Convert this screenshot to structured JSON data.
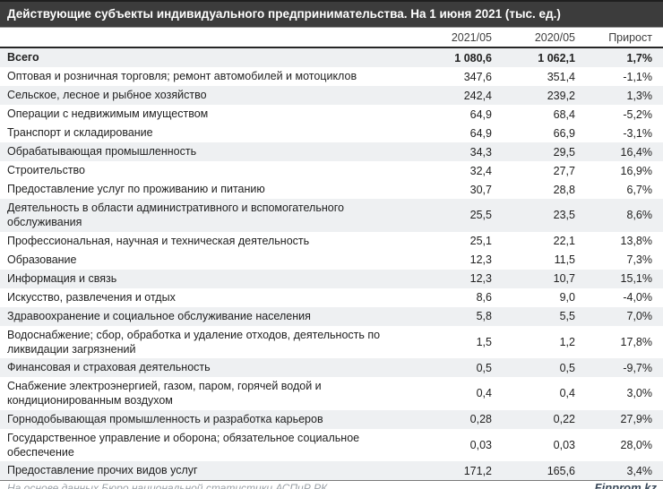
{
  "title": "Действующие субъекты индивидуального предпринимательства. На 1 июня 2021 (тыс. ед.)",
  "table": {
    "columns": [
      "2021/05",
      "2020/05",
      "Прирост"
    ],
    "rows": [
      {
        "label": "Всего",
        "v2021_05": "1 080,6",
        "v2020_05": "1 062,1",
        "growth": "1,7%",
        "bold": true,
        "shaded": true
      },
      {
        "label": "Оптовая и розничная торговля; ремонт автомобилей и мотоциклов",
        "v2021_05": "347,6",
        "v2020_05": "351,4",
        "growth": "-1,1%",
        "bold": false,
        "shaded": false
      },
      {
        "label": "Сельское, лесное и рыбное хозяйство",
        "v2021_05": "242,4",
        "v2020_05": "239,2",
        "growth": "1,3%",
        "bold": false,
        "shaded": true
      },
      {
        "label": "Операции с недвижимым имуществом",
        "v2021_05": "64,9",
        "v2020_05": "68,4",
        "growth": "-5,2%",
        "bold": false,
        "shaded": false
      },
      {
        "label": "Транспорт и складирование",
        "v2021_05": "64,9",
        "v2020_05": "66,9",
        "growth": "-3,1%",
        "bold": false,
        "shaded": false
      },
      {
        "label": "Обрабатывающая промышленность",
        "v2021_05": "34,3",
        "v2020_05": "29,5",
        "growth": "16,4%",
        "bold": false,
        "shaded": true
      },
      {
        "label": "Строительство",
        "v2021_05": "32,4",
        "v2020_05": "27,7",
        "growth": "16,9%",
        "bold": false,
        "shaded": false
      },
      {
        "label": "Предоставление услуг по проживанию и питанию",
        "v2021_05": "30,7",
        "v2020_05": "28,8",
        "growth": "6,7%",
        "bold": false,
        "shaded": false
      },
      {
        "label": "Деятельность в области административного и вспомогательного обслуживания",
        "v2021_05": "25,5",
        "v2020_05": "23,5",
        "growth": "8,6%",
        "bold": false,
        "shaded": true
      },
      {
        "label": "Профессиональная, научная и техническая деятельность",
        "v2021_05": "25,1",
        "v2020_05": "22,1",
        "growth": "13,8%",
        "bold": false,
        "shaded": false
      },
      {
        "label": "Образование",
        "v2021_05": "12,3",
        "v2020_05": "11,5",
        "growth": "7,3%",
        "bold": false,
        "shaded": false
      },
      {
        "label": "Информация и связь",
        "v2021_05": "12,3",
        "v2020_05": "10,7",
        "growth": "15,1%",
        "bold": false,
        "shaded": true
      },
      {
        "label": "Искусство, развлечения и отдых",
        "v2021_05": "8,6",
        "v2020_05": "9,0",
        "growth": "-4,0%",
        "bold": false,
        "shaded": false
      },
      {
        "label": "Здравоохранение и социальное обслуживание населения",
        "v2021_05": "5,8",
        "v2020_05": "5,5",
        "growth": "7,0%",
        "bold": false,
        "shaded": true
      },
      {
        "label": "Водоснабжение; сбор, обработка и удаление отходов, деятельность по ликвидации загрязнений",
        "v2021_05": "1,5",
        "v2020_05": "1,2",
        "growth": "17,8%",
        "bold": false,
        "shaded": false
      },
      {
        "label": "Финансовая и страховая деятельность",
        "v2021_05": "0,5",
        "v2020_05": "0,5",
        "growth": "-9,7%",
        "bold": false,
        "shaded": true
      },
      {
        "label": "Снабжение электроэнергией, газом, паром, горячей водой и кондиционированным воздухом",
        "v2021_05": "0,4",
        "v2020_05": "0,4",
        "growth": "3,0%",
        "bold": false,
        "shaded": false
      },
      {
        "label": "Горнодобывающая промышленность и разработка карьеров",
        "v2021_05": "0,28",
        "v2020_05": "0,22",
        "growth": "27,9%",
        "bold": false,
        "shaded": true
      },
      {
        "label": "Государственное управление и оборона; обязательное социальное обеспечение",
        "v2021_05": "0,03",
        "v2020_05": "0,03",
        "growth": "28,0%",
        "bold": false,
        "shaded": false
      },
      {
        "label": "Предоставление прочих видов услуг",
        "v2021_05": "171,2",
        "v2020_05": "165,6",
        "growth": "3,4%",
        "bold": false,
        "shaded": true
      }
    ]
  },
  "footer": {
    "source": "На основе данных Бюро национальной статистики АСПиР РК",
    "brand": "Finprom.kz"
  },
  "colors": {
    "title_bar_bg": "#3c3c3c",
    "title_text": "#ffffff",
    "row_shade": "#eef0f2",
    "body_text": "#1f1f1f",
    "source_text": "#9aa0a6",
    "brand_text": "#3b4a5a",
    "rule_dark": "#262626"
  },
  "chart_data": {
    "type": "table",
    "title": "Действующие субъекты индивидуального предпринимательства. На 1 июня 2021 (тыс. ед.)",
    "columns": [
      "2021/05",
      "2020/05",
      "Прирост"
    ],
    "categories": [
      "Всего",
      "Оптовая и розничная торговля; ремонт автомобилей и мотоциклов",
      "Сельское, лесное и рыбное хозяйство",
      "Операции с недвижимым имуществом",
      "Транспорт и складирование",
      "Обрабатывающая промышленность",
      "Строительство",
      "Предоставление услуг по проживанию и питанию",
      "Деятельность в области административного и вспомогательного обслуживания",
      "Профессиональная, научная и техническая деятельность",
      "Образование",
      "Информация и связь",
      "Искусство, развлечения и отдых",
      "Здравоохранение и социальное обслуживание населения",
      "Водоснабжение; сбор, обработка и удаление отходов, деятельность по ликвидации загрязнений",
      "Финансовая и страховая деятельность",
      "Снабжение электроэнергией, газом, паром, горячей водой и кондиционированным воздухом",
      "Горнодобывающая промышленность и разработка карьеров",
      "Государственное управление и оборона; обязательное социальное обеспечение",
      "Предоставление прочих видов услуг"
    ],
    "series": [
      {
        "name": "2021/05",
        "values": [
          1080.6,
          347.6,
          242.4,
          64.9,
          64.9,
          34.3,
          32.4,
          30.7,
          25.5,
          25.1,
          12.3,
          12.3,
          8.6,
          5.8,
          1.5,
          0.5,
          0.4,
          0.28,
          0.03,
          171.2
        ]
      },
      {
        "name": "2020/05",
        "values": [
          1062.1,
          351.4,
          239.2,
          68.4,
          66.9,
          29.5,
          27.7,
          28.8,
          23.5,
          22.1,
          11.5,
          10.7,
          9.0,
          5.5,
          1.2,
          0.5,
          0.4,
          0.22,
          0.03,
          165.6
        ]
      },
      {
        "name": "Прирост, %",
        "values": [
          1.7,
          -1.1,
          1.3,
          -5.2,
          -3.1,
          16.4,
          16.9,
          6.7,
          8.6,
          13.8,
          7.3,
          15.1,
          -4.0,
          7.0,
          17.8,
          -9.7,
          3.0,
          27.9,
          28.0,
          3.4
        ]
      }
    ],
    "units": "тыс. ед.",
    "source": "На основе данных Бюро национальной статистики АСПиР РК"
  }
}
